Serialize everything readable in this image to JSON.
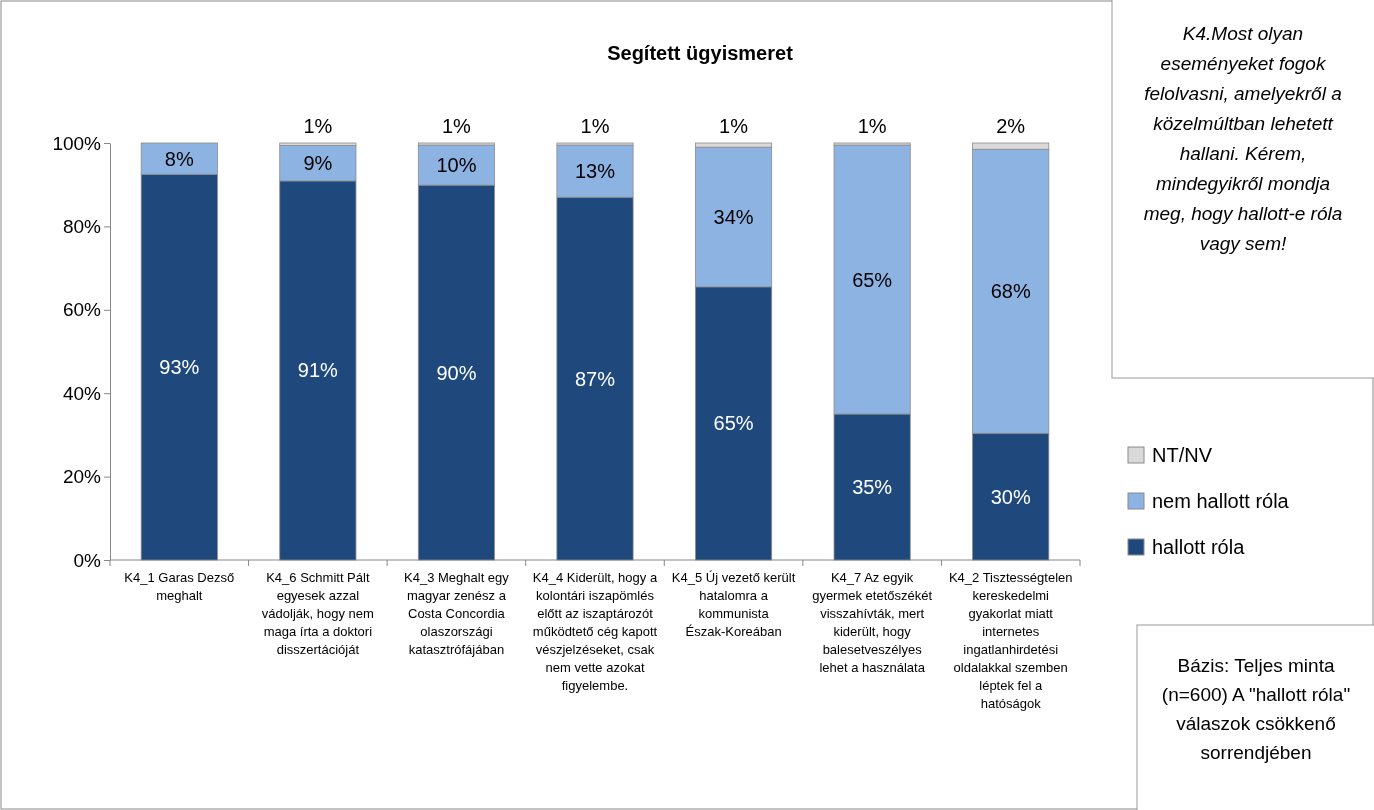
{
  "chart_data": {
    "type": "bar",
    "stacked": true,
    "title": "Segített ügyismeret",
    "categories": [
      "K4_1 Garas Dezső meghalt",
      "K4_6 Schmitt Pált egyesek azzal vádolják, hogy nem maga írta a doktori disszertációját",
      "K4_3 Meghalt egy magyar zenész a Costa Concordia olaszországi katasztrófájában",
      "K4_4 Kiderült, hogy a kolontári iszapömlés előtt az iszaptározót működtető cég kapott vészjelzéseket, csak nem vette azokat figyelembe.",
      "K4_5 Új vezető került hatalomra a kommunista Észak-Koreában",
      "K4_7 Az egyik gyermek etetőszékét visszahívták, mert kiderült, hogy balesetveszélyes lehet a használata",
      "K4_2 Tisztességtelen kereskedelmi gyakorlat miatt internetes ingatlanhirdetési oldalakkal szemben léptek fel a hatóságok"
    ],
    "series": [
      {
        "name": "hallott róla",
        "color": "#1f497d",
        "values": [
          92.5,
          90.9,
          89.9,
          87.0,
          65.5,
          35.0,
          30.4
        ],
        "value_labels": [
          "93%",
          "91%",
          "90%",
          "87%",
          "65%",
          "35%",
          "30%"
        ]
      },
      {
        "name": "nem hallott róla",
        "color": "#8db3e2",
        "values": [
          7.5,
          8.5,
          9.6,
          12.5,
          33.5,
          64.5,
          68.1
        ],
        "value_labels": [
          "8%",
          "9%",
          "10%",
          "13%",
          "34%",
          "65%",
          "68%"
        ]
      },
      {
        "name": "NT/NV",
        "color": "#d9d9d9",
        "values": [
          0,
          0.6,
          0.5,
          0.5,
          1.0,
          0.5,
          1.5
        ],
        "value_labels": [
          null,
          "1%",
          "1%",
          "1%",
          "1%",
          "1%",
          "2%"
        ]
      }
    ],
    "ylim": [
      0,
      100
    ],
    "yticks": [
      {
        "value": 0,
        "label": "0%"
      },
      {
        "value": 20,
        "label": "20%"
      },
      {
        "value": 40,
        "label": "40%"
      },
      {
        "value": 60,
        "label": "60%"
      },
      {
        "value": 80,
        "label": "80%"
      },
      {
        "value": 100,
        "label": "100%"
      }
    ],
    "grid": false,
    "legend": "right",
    "annotations": [
      "K4.Most olyan eseményeket fogok felolvasni, amelyekről a közelmúltban lehetett hallani. Kérem, mindegyikről mondja meg, hogy hallott-e róla vagy sem!",
      "Bázis: Teljes minta (n=600) A \"hallott róla\" válaszok csökkenő sorrendjében"
    ]
  }
}
